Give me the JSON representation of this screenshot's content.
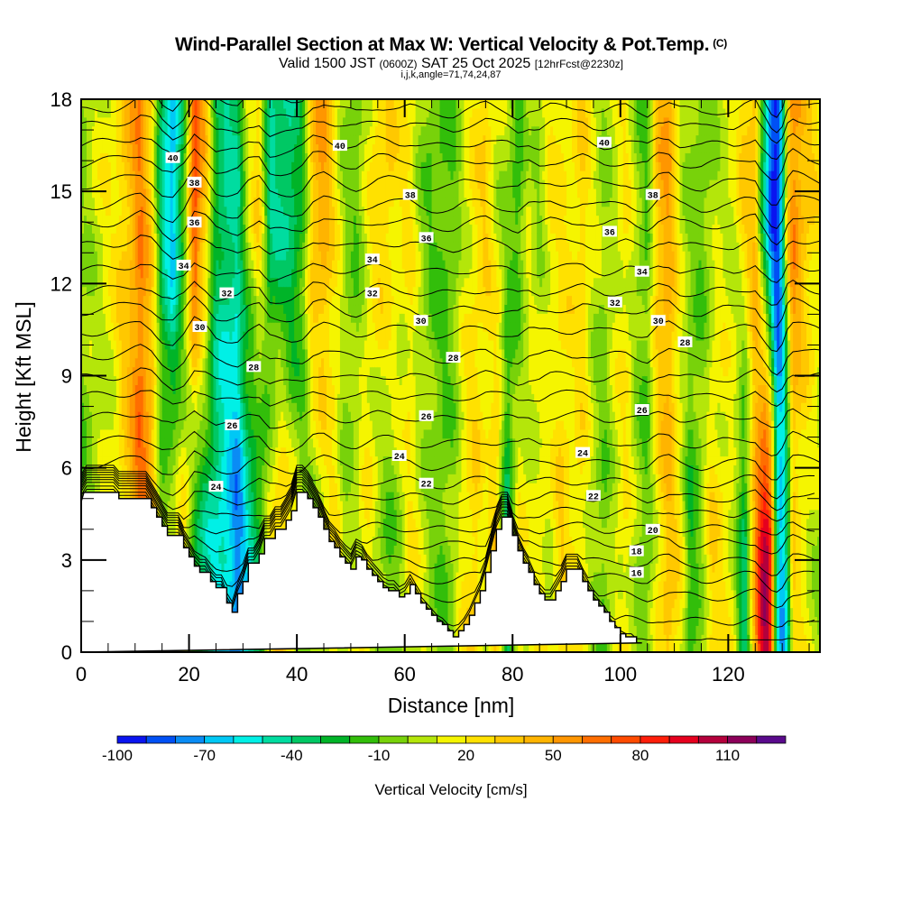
{
  "header": {
    "title": "Wind-Parallel Section at Max W: Vertical Velocity & Pot.Temp.",
    "copyright": "(C)",
    "valid_prefix": "Valid 1500 JST",
    "valid_utc": "(0600Z)",
    "valid_date": "SAT 25 Oct 2025",
    "forecast": "[12hrFcst@2230z]",
    "indices": "i,j,k,angle=71,74,24,87"
  },
  "chart_data": {
    "type": "heatmap",
    "title": "Wind-Parallel Section at Max W: Vertical Velocity & Pot.Temp.",
    "xlabel": "Distance [nm]",
    "ylabel": "Height [Kft MSL]",
    "xlim": [
      0,
      137
    ],
    "ylim": [
      0,
      18
    ],
    "xticks": [
      0,
      20,
      40,
      60,
      80,
      100,
      120
    ],
    "yticks": [
      0,
      3,
      6,
      9,
      12,
      15,
      18
    ],
    "colorbar": {
      "title": "Vertical Velocity [cm/s]",
      "levels_labels": [
        "-100",
        "-70",
        "-40",
        "-10",
        "20",
        "50",
        "80",
        "110"
      ],
      "colors": [
        "#0a14f0",
        "#0050f5",
        "#0a8cf5",
        "#00c8f5",
        "#00f0e6",
        "#00dca0",
        "#00c864",
        "#00b428",
        "#32be0a",
        "#78d20a",
        "#b4e60a",
        "#f5f500",
        "#ffe100",
        "#ffc800",
        "#ffb400",
        "#ff9600",
        "#ff6e00",
        "#ff4b00",
        "#ff1e0a",
        "#e6001e",
        "#b4003c",
        "#8c005a",
        "#5a0a8c"
      ],
      "min": -100,
      "step": 10
    },
    "terrain_kft": {
      "distance_nm": [
        0,
        0.5,
        7,
        7,
        13,
        13,
        14,
        14,
        15,
        15,
        16,
        16,
        19,
        19,
        20,
        20,
        21,
        21,
        22,
        22,
        24,
        24,
        25,
        25,
        27,
        27,
        28,
        28,
        29,
        29,
        30,
        30,
        31,
        31,
        33,
        33,
        34,
        34,
        36,
        36,
        38,
        38,
        39,
        39,
        40,
        40,
        42,
        42,
        43,
        43,
        44,
        44,
        45,
        45,
        46,
        46,
        47,
        47,
        48,
        48,
        49,
        49,
        50,
        50,
        51,
        51,
        52,
        52,
        53,
        53,
        54,
        54,
        55,
        55,
        56,
        56,
        57,
        57,
        59,
        59,
        60,
        60,
        61,
        61,
        62,
        62,
        63,
        63,
        64,
        64,
        65,
        65,
        66,
        66,
        67,
        67,
        68,
        68,
        69,
        69,
        70,
        70,
        71,
        71,
        72,
        72,
        73,
        73,
        74,
        74,
        75,
        75,
        76,
        76,
        77,
        77,
        78,
        78,
        79,
        79,
        80,
        80,
        81,
        81,
        82,
        82,
        83,
        83,
        84,
        84,
        85,
        85,
        86,
        86,
        87,
        87,
        88,
        88,
        89,
        89,
        90,
        90,
        92,
        92,
        93,
        93,
        94,
        94,
        95,
        95,
        96,
        96,
        97,
        97,
        98,
        98,
        99,
        99,
        100,
        100,
        101,
        101,
        102,
        102,
        103,
        103,
        104,
        104,
        137
      ],
      "height_kft": [
        4.9,
        5.2,
        5.2,
        5.0,
        5.0,
        4.7,
        4.7,
        4.4,
        4.4,
        4.1,
        4.1,
        3.8,
        3.8,
        3.4,
        3.4,
        3.1,
        3.1,
        2.8,
        2.8,
        2.6,
        2.6,
        2.3,
        2.3,
        2.1,
        2.1,
        1.6,
        1.6,
        1.3,
        1.3,
        1.9,
        1.9,
        2.3,
        2.3,
        2.9,
        2.9,
        3.2,
        3.2,
        3.7,
        3.7,
        4.0,
        4.0,
        4.3,
        4.3,
        4.6,
        4.6,
        5.2,
        5.2,
        5.0,
        5.0,
        4.7,
        4.7,
        4.4,
        4.4,
        4.0,
        4.0,
        3.6,
        3.6,
        3.4,
        3.4,
        3.1,
        3.1,
        2.9,
        2.9,
        2.7,
        2.7,
        3.1,
        3.1,
        3.0,
        3.0,
        2.7,
        2.7,
        2.5,
        2.5,
        2.3,
        2.3,
        2.1,
        2.1,
        2.0,
        2.0,
        1.8,
        1.8,
        1.9,
        1.9,
        2.2,
        2.2,
        1.9,
        1.9,
        1.6,
        1.6,
        1.4,
        1.4,
        1.2,
        1.2,
        1.0,
        1.0,
        0.9,
        0.9,
        0.7,
        0.7,
        0.5,
        0.5,
        0.7,
        0.7,
        0.9,
        0.9,
        1.2,
        1.2,
        1.6,
        1.6,
        2.0,
        2.0,
        2.6,
        2.6,
        3.3,
        3.3,
        4.0,
        4.0,
        4.4,
        4.4,
        4.4,
        4.4,
        3.8,
        3.8,
        3.3,
        3.3,
        2.9,
        2.9,
        2.6,
        2.6,
        2.2,
        2.2,
        1.9,
        1.9,
        1.7,
        1.7,
        1.7,
        1.7,
        2.0,
        2.0,
        2.3,
        2.3,
        2.7,
        2.7,
        2.7,
        2.7,
        2.3,
        2.3,
        2.0,
        2.0,
        1.7,
        1.7,
        1.5,
        1.5,
        1.3,
        1.3,
        1.0,
        1.0,
        0.8,
        0.8,
        0.6,
        0.6,
        0.5,
        0.5,
        0.5,
        0.5,
        0.3,
        0.3,
        0.3
      ]
    },
    "w_bands": {
      "distance_nm": [
        0,
        3,
        6,
        9,
        11,
        13,
        15,
        17,
        19,
        21,
        23,
        25,
        27,
        29,
        31,
        33,
        35,
        37,
        39,
        41,
        43,
        45,
        47,
        49,
        51,
        53,
        55,
        57,
        59,
        61,
        63,
        65,
        67,
        69,
        71,
        73,
        75,
        77,
        79,
        81,
        83,
        85,
        87,
        89,
        91,
        93,
        95,
        97,
        99,
        101,
        103,
        105,
        107,
        109,
        111,
        113,
        115,
        117,
        119,
        121,
        123,
        125,
        126,
        127,
        128,
        129,
        130,
        131,
        132,
        133,
        135,
        137
      ],
      "upper_cm_s": [
        0,
        10,
        20,
        40,
        60,
        30,
        -40,
        -70,
        -20,
        80,
        40,
        -30,
        -40,
        -40,
        10,
        30,
        -40,
        -40,
        -40,
        -20,
        40,
        50,
        20,
        0,
        -10,
        10,
        30,
        30,
        20,
        20,
        0,
        -10,
        -10,
        -10,
        10,
        20,
        30,
        10,
        0,
        -20,
        10,
        0,
        20,
        20,
        20,
        30,
        10,
        0,
        10,
        20,
        0,
        -10,
        40,
        50,
        10,
        0,
        -10,
        0,
        10,
        10,
        30,
        40,
        -10,
        -50,
        -90,
        -100,
        -60,
        30,
        60,
        50,
        30,
        20
      ],
      "lower_cm_s": [
        -10,
        0,
        10,
        40,
        70,
        50,
        0,
        10,
        20,
        -20,
        -40,
        -50,
        -60,
        -80,
        -50,
        -30,
        20,
        40,
        20,
        0,
        0,
        10,
        20,
        0,
        10,
        20,
        0,
        -10,
        0,
        20,
        10,
        0,
        -10,
        0,
        20,
        30,
        10,
        40,
        -40,
        20,
        10,
        20,
        10,
        30,
        20,
        20,
        0,
        -10,
        10,
        20,
        0,
        -10,
        20,
        40,
        20,
        -20,
        0,
        30,
        20,
        10,
        -40,
        50,
        90,
        110,
        80,
        -40,
        -70,
        -40,
        30,
        20,
        10,
        0
      ]
    },
    "isentropes": {
      "levels": [
        14,
        15,
        16,
        17,
        18,
        19,
        20,
        21,
        22,
        23,
        24,
        25,
        26,
        27,
        28,
        29,
        30,
        31,
        32,
        33,
        34,
        35,
        36,
        37,
        38,
        39,
        40,
        41,
        42
      ],
      "base_height_kft": [
        0.3,
        1.0,
        1.8,
        2.4,
        2.9,
        3.5,
        4.0,
        4.5,
        5.0,
        5.5,
        6.1,
        6.8,
        7.6,
        8.3,
        8.9,
        9.6,
        10.4,
        11.1,
        11.7,
        12.4,
        13.2,
        13.9,
        14.5,
        15.2,
        15.9,
        16.5,
        17.1,
        17.6,
        18.2
      ],
      "labels": [
        {
          "text": "40",
          "distance": 17,
          "height": 16.1
        },
        {
          "text": "40",
          "distance": 48,
          "height": 16.5
        },
        {
          "text": "40",
          "distance": 97,
          "height": 16.6
        },
        {
          "text": "38",
          "distance": 21,
          "height": 15.3
        },
        {
          "text": "38",
          "distance": 61,
          "height": 14.9
        },
        {
          "text": "38",
          "distance": 106,
          "height": 14.9
        },
        {
          "text": "36",
          "distance": 21,
          "height": 14.0
        },
        {
          "text": "36",
          "distance": 64,
          "height": 13.5
        },
        {
          "text": "36",
          "distance": 98,
          "height": 13.7
        },
        {
          "text": "34",
          "distance": 19,
          "height": 12.6
        },
        {
          "text": "34",
          "distance": 54,
          "height": 12.8
        },
        {
          "text": "34",
          "distance": 104,
          "height": 12.4
        },
        {
          "text": "32",
          "distance": 27,
          "height": 11.7
        },
        {
          "text": "32",
          "distance": 54,
          "height": 11.7
        },
        {
          "text": "32",
          "distance": 99,
          "height": 11.4
        },
        {
          "text": "30",
          "distance": 22,
          "height": 10.6
        },
        {
          "text": "30",
          "distance": 63,
          "height": 10.8
        },
        {
          "text": "30",
          "distance": 107,
          "height": 10.8
        },
        {
          "text": "28",
          "distance": 32,
          "height": 9.3
        },
        {
          "text": "28",
          "distance": 69,
          "height": 9.6
        },
        {
          "text": "28",
          "distance": 112,
          "height": 10.1
        },
        {
          "text": "26",
          "distance": 28,
          "height": 7.4
        },
        {
          "text": "26",
          "distance": 64,
          "height": 7.7
        },
        {
          "text": "26",
          "distance": 104,
          "height": 7.9
        },
        {
          "text": "24",
          "distance": 25,
          "height": 5.4
        },
        {
          "text": "24",
          "distance": 59,
          "height": 6.4
        },
        {
          "text": "24",
          "distance": 93,
          "height": 6.5
        },
        {
          "text": "22",
          "distance": 64,
          "height": 5.5
        },
        {
          "text": "22",
          "distance": 95,
          "height": 5.1
        },
        {
          "text": "20",
          "distance": 106,
          "height": 4.0
        },
        {
          "text": "18",
          "distance": 103,
          "height": 3.3
        },
        {
          "text": "16",
          "distance": 103,
          "height": 2.6
        }
      ]
    },
    "grid": false,
    "legend": "bottom"
  }
}
